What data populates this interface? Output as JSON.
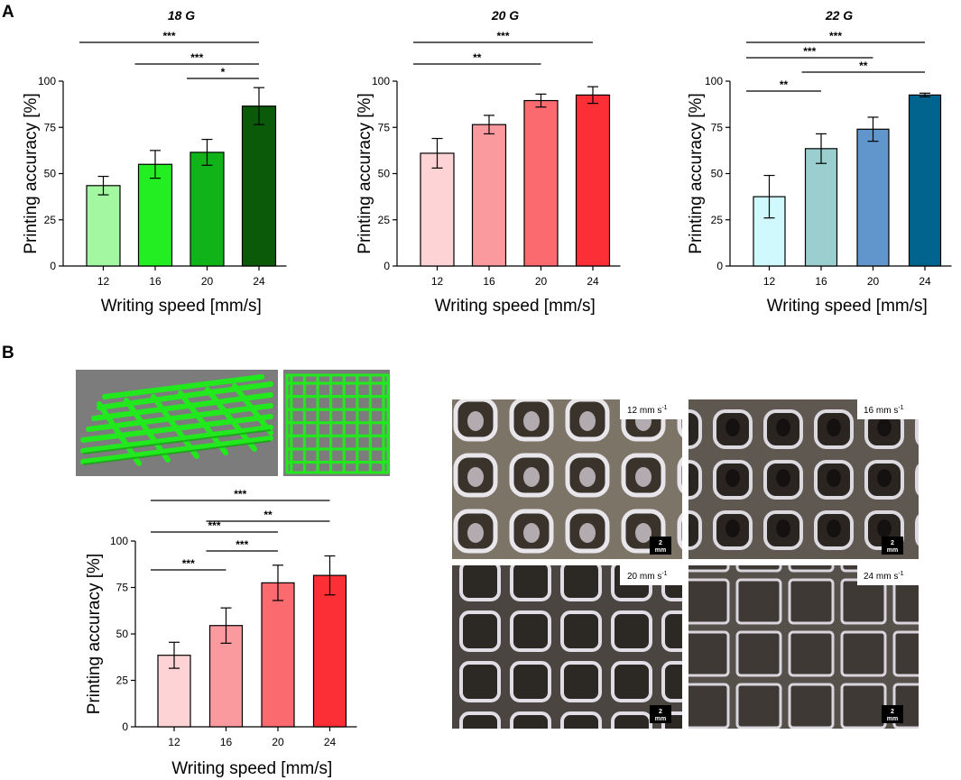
{
  "panel_labels": {
    "a": "A",
    "b": "B"
  },
  "chart_data": [
    {
      "type": "bar",
      "title": "18 G",
      "xlabel": "Writing speed [mm/s]",
      "ylabel": "Printing accuracy [%]",
      "categories": [
        "12",
        "16",
        "20",
        "24"
      ],
      "values": [
        43.5,
        55,
        61.5,
        86.5
      ],
      "errors": [
        5,
        7.5,
        7,
        10
      ],
      "colors": [
        "#a3f7a0",
        "#22ee22",
        "#10b418",
        "#0a5a0a"
      ],
      "ylim": [
        0,
        100
      ],
      "yticks": [
        "0",
        "25",
        "50",
        "75",
        "100"
      ],
      "significance": [
        {
          "from": 0,
          "to": 3,
          "label": "***"
        },
        {
          "from": 1,
          "to": 3,
          "label": "***"
        },
        {
          "from": 2,
          "to": 3,
          "label": "*"
        }
      ]
    },
    {
      "type": "bar",
      "title": "20 G",
      "xlabel": "Writing speed [mm/s]",
      "ylabel": "Printing accuracy [%]",
      "categories": [
        "12",
        "16",
        "20",
        "24"
      ],
      "values": [
        61,
        76.5,
        89.5,
        92.5
      ],
      "errors": [
        8,
        5,
        3.5,
        4.5
      ],
      "colors": [
        "#fdd3d5",
        "#fa9a9e",
        "#fa6a6e",
        "#fb2f35"
      ],
      "ylim": [
        0,
        100
      ],
      "yticks": [
        "0",
        "25",
        "50",
        "75",
        "100"
      ],
      "significance": [
        {
          "from": 0,
          "to": 3,
          "label": "***"
        },
        {
          "from": 0,
          "to": 2,
          "label": "**"
        }
      ]
    },
    {
      "type": "bar",
      "title": "22 G",
      "xlabel": "Writing speed [mm/s]",
      "ylabel": "Printing accuracy [%]",
      "categories": [
        "12",
        "16",
        "20",
        "24"
      ],
      "values": [
        37.5,
        63.5,
        74,
        92.5
      ],
      "errors": [
        11.5,
        8,
        6.5,
        1
      ],
      "colors": [
        "#cff9fc",
        "#9bcfcf",
        "#6196cc",
        "#00648f"
      ],
      "ylim": [
        0,
        100
      ],
      "yticks": [
        "0",
        "25",
        "50",
        "75",
        "100"
      ],
      "significance": [
        {
          "from": 0,
          "to": 3,
          "label": "***"
        },
        {
          "from": 0,
          "to": 2,
          "label": "***"
        },
        {
          "from": 1,
          "to": 3,
          "label": "**"
        },
        {
          "from": 0,
          "to": 1,
          "label": "**"
        }
      ]
    },
    {
      "type": "bar",
      "title": "",
      "xlabel": "Writing speed [mm/s]",
      "ylabel": "Printing accuracy [%]",
      "categories": [
        "12",
        "16",
        "20",
        "24"
      ],
      "values": [
        38.5,
        54.5,
        77.5,
        81.5
      ],
      "errors": [
        7,
        9.5,
        9.5,
        10.5
      ],
      "colors": [
        "#fdd3d5",
        "#fa9a9e",
        "#fa6a6e",
        "#fb2f35"
      ],
      "ylim": [
        0,
        100
      ],
      "yticks": [
        "0",
        "25",
        "50",
        "75",
        "100"
      ],
      "significance": [
        {
          "from": 0,
          "to": 3,
          "label": "***"
        },
        {
          "from": 1,
          "to": 3,
          "label": "**"
        },
        {
          "from": 0,
          "to": 2,
          "label": "***"
        },
        {
          "from": 1,
          "to": 2,
          "label": "***"
        },
        {
          "from": 0,
          "to": 1,
          "label": "***"
        }
      ]
    }
  ],
  "photos": [
    {
      "label": "12 mm s",
      "exp": "-1",
      "scale_num": "2",
      "scale_unit": "mm"
    },
    {
      "label": "16 mm s",
      "exp": "-1",
      "scale_num": "2",
      "scale_unit": "mm"
    },
    {
      "label": "20 mm s",
      "exp": "-1",
      "scale_num": "2",
      "scale_unit": "mm"
    },
    {
      "label": "24 mm s",
      "exp": "-1",
      "scale_num": "2",
      "scale_unit": "mm"
    }
  ],
  "colors": {
    "lattice_green": "#22e81e",
    "render_bg": "#7c7c7c"
  }
}
